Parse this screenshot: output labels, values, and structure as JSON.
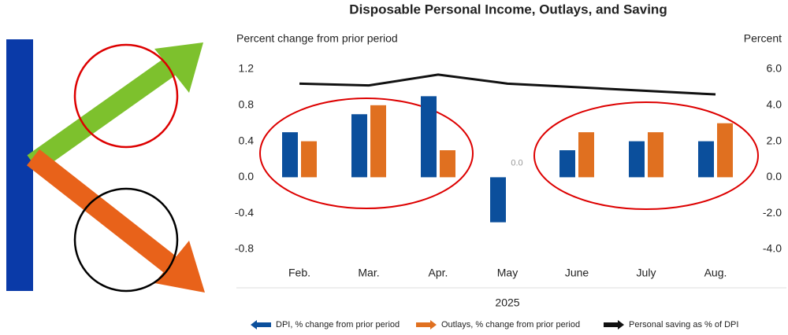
{
  "chart_data": {
    "type": "bar",
    "title": "Disposable Personal Income, Outlays, and Saving",
    "y_label": "Percent change from prior period",
    "y2_label": "Percent",
    "x_label": "2025",
    "categories": [
      "Feb.",
      "Mar.",
      "Apr.",
      "May",
      "June",
      "July",
      "Aug."
    ],
    "series": [
      {
        "name": "DPI, % change from prior period",
        "color": "#0b4f9c",
        "values": [
          0.5,
          0.7,
          0.9,
          -0.5,
          0.3,
          0.4,
          0.4
        ]
      },
      {
        "name": "Outlays, % change from prior period",
        "color": "#e07020",
        "values": [
          0.4,
          0.8,
          0.3,
          0.0,
          0.5,
          0.5,
          0.6
        ],
        "value_labels": [
          null,
          null,
          null,
          "0.0",
          null,
          null,
          null
        ]
      },
      {
        "name": "Personal saving as % of DPI",
        "color": "#111111",
        "type": "line",
        "axis": "y2",
        "values": [
          5.2,
          5.1,
          5.7,
          5.2,
          5.0,
          4.8,
          4.6
        ]
      }
    ],
    "ylim": [
      -0.8,
      1.2
    ],
    "yticks": [
      -0.8,
      -0.4,
      {
        "value": 0,
        "label": "0.0"
      },
      0.4,
      0.8,
      1.2
    ],
    "y2lim": [
      -4,
      6
    ],
    "y2ticks": [
      {
        "value": -4,
        "label": "-4.0"
      },
      {
        "value": -2,
        "label": "-2.0"
      },
      {
        "value": 0,
        "label": "0.0"
      },
      {
        "value": 2,
        "label": "2.0"
      },
      {
        "value": 4,
        "label": "4.0"
      },
      {
        "value": 6,
        "label": "6.0"
      }
    ],
    "grid": false
  }
}
